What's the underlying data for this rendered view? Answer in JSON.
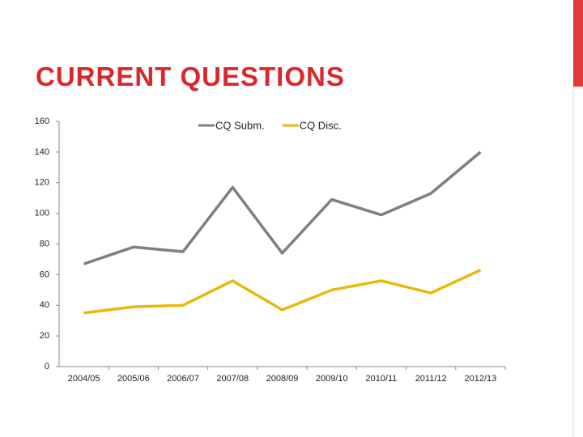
{
  "chart_data": {
    "type": "line",
    "title": "CURRENT QUESTIONS",
    "categories": [
      "2004/05",
      "2005/06",
      "2006/07",
      "2007/08",
      "2008/09",
      "2009/10",
      "2010/11",
      "2011/12",
      "2012/13"
    ],
    "series": [
      {
        "name": "CQ Subm.",
        "color": "#7f7f7f",
        "values": [
          67,
          78,
          75,
          117,
          74,
          109,
          99,
          113,
          140
        ]
      },
      {
        "name": "CQ Disc.",
        "color": "#e8b80c",
        "values": [
          35,
          39,
          40,
          56,
          37,
          50,
          56,
          48,
          63
        ]
      }
    ],
    "ylim": [
      0,
      160
    ],
    "yticks": [
      0,
      20,
      40,
      60,
      80,
      100,
      120,
      140,
      160
    ],
    "grid": false,
    "legend": "top"
  }
}
